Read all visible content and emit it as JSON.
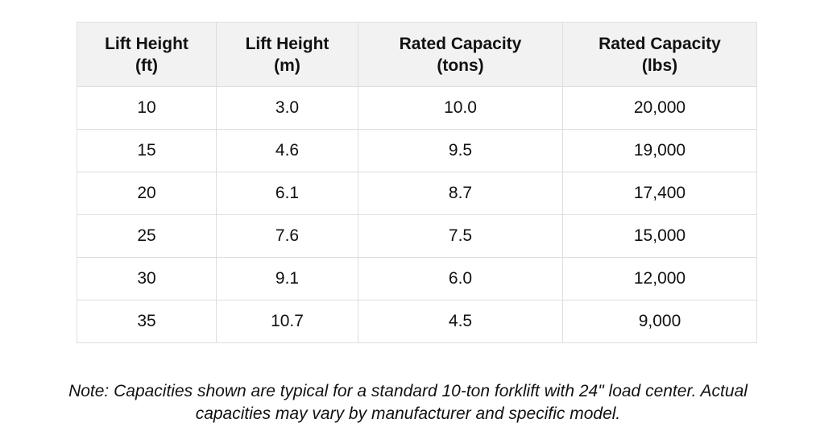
{
  "table": {
    "headers": [
      {
        "line1": "Lift Height",
        "line2": "(ft)"
      },
      {
        "line1": "Lift Height",
        "line2": "(m)"
      },
      {
        "line1": "Rated Capacity",
        "line2": "(tons)"
      },
      {
        "line1": "Rated Capacity",
        "line2": "(lbs)"
      }
    ],
    "rows": [
      [
        "10",
        "3.0",
        "10.0",
        "20,000"
      ],
      [
        "15",
        "4.6",
        "9.5",
        "19,000"
      ],
      [
        "20",
        "6.1",
        "8.7",
        "17,400"
      ],
      [
        "25",
        "7.6",
        "7.5",
        "15,000"
      ],
      [
        "30",
        "9.1",
        "6.0",
        "12,000"
      ],
      [
        "35",
        "10.7",
        "4.5",
        "9,000"
      ]
    ]
  },
  "note": {
    "line1": "Note: Capacities shown are typical for a standard 10-ton forklift with 24\" load center. Actual",
    "line2": "capacities may vary by manufacturer and specific model."
  }
}
